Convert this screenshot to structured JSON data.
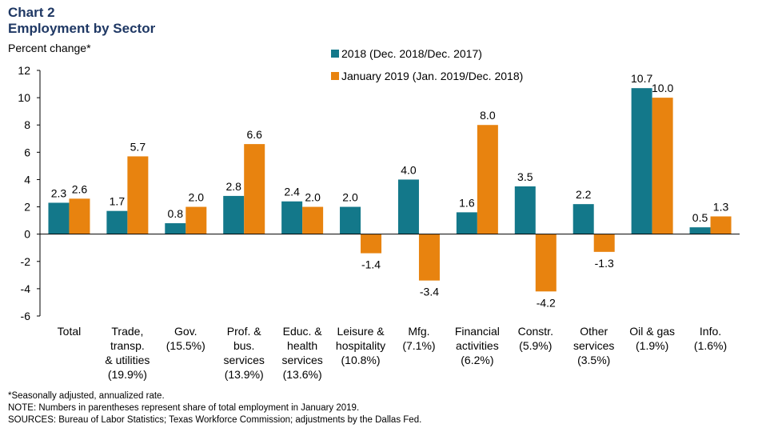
{
  "title": "Chart 2",
  "subtitle": "Employment by Sector",
  "colors": {
    "s2018": "#13788a",
    "s2019": "#e8830f"
  },
  "chart_data": {
    "type": "bar",
    "title": "Employment by Sector",
    "ylabel": "Percent change*",
    "xlabel": "",
    "ylim": [
      -6,
      12
    ],
    "yticks": [
      12,
      10,
      8,
      6,
      4,
      2,
      0,
      -2,
      -4,
      -6
    ],
    "grid": false,
    "legend_position": "top-center",
    "categories": [
      [
        "Total"
      ],
      [
        "Trade,",
        "transp.",
        "& utilities",
        "(19.9%)"
      ],
      [
        "Gov.",
        "(15.5%)"
      ],
      [
        "Prof. &",
        "bus.",
        "services",
        "(13.9%)"
      ],
      [
        "Educ. &",
        "health",
        "services",
        "(13.6%)"
      ],
      [
        "Leisure &",
        "hospitality",
        "(10.8%)"
      ],
      [
        "Mfg.",
        "(7.1%)"
      ],
      [
        "Financial",
        "activities",
        "(6.2%)"
      ],
      [
        "Constr.",
        "(5.9%)"
      ],
      [
        "Other",
        "services",
        "(3.5%)"
      ],
      [
        "Oil & gas",
        "(1.9%)"
      ],
      [
        "Info.",
        "(1.6%)"
      ]
    ],
    "series": [
      {
        "name": "2018 (Dec. 2018/Dec. 2017)",
        "values": [
          2.3,
          1.7,
          0.8,
          2.8,
          2.4,
          2.0,
          4.0,
          1.6,
          3.5,
          2.2,
          10.7,
          0.5
        ],
        "labels": [
          "2.3",
          "1.7",
          "0.8",
          "2.8",
          "2.4",
          "2.0",
          "4.0",
          "1.6",
          "3.5",
          "2.2",
          "10.7",
          "0.5"
        ]
      },
      {
        "name": "January 2019 (Jan. 2019/Dec. 2018)",
        "values": [
          2.6,
          5.7,
          2.0,
          6.6,
          2.0,
          -1.4,
          -3.4,
          8.0,
          -4.2,
          -1.3,
          10.0,
          1.3
        ],
        "labels": [
          "2.6",
          "5.7",
          "2.0",
          "6.6",
          "2.0",
          "-1.4",
          "-3.4",
          "8.0",
          "-4.2",
          "-1.3",
          "10.0",
          "1.3"
        ]
      }
    ]
  },
  "footnotes": [
    "*Seasonally adjusted, annualized rate.",
    "NOTE: Numbers in parentheses represent share of total employment in January 2019.",
    "SOURCES: Bureau of Labor Statistics; Texas Workforce Commission; adjustments by the Dallas Fed."
  ]
}
